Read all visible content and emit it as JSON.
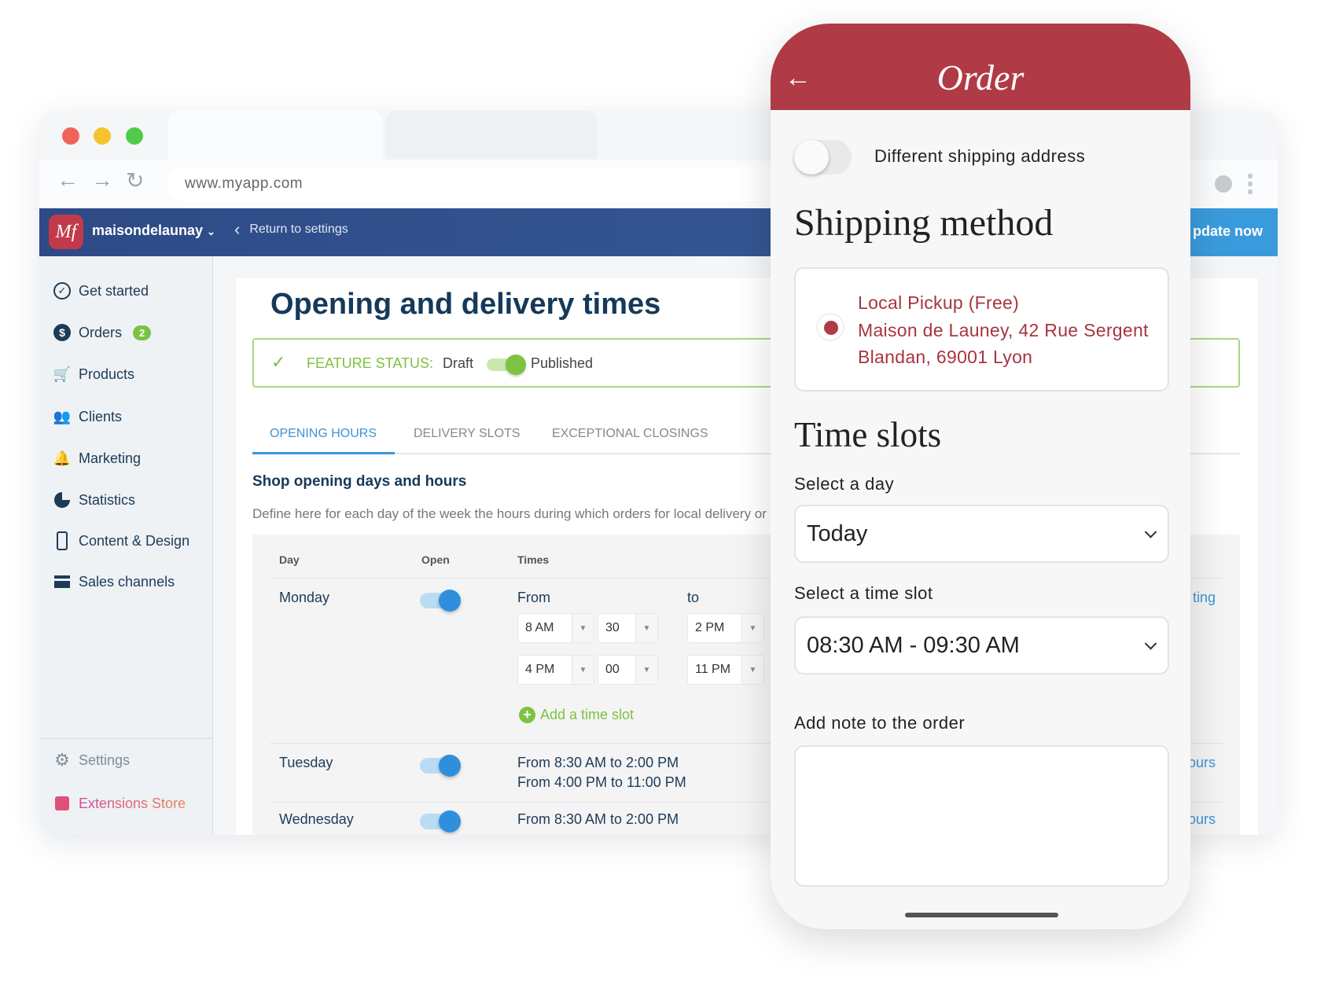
{
  "browser": {
    "url": "www.myapp.com",
    "traffic_lights": [
      "#f0625a",
      "#f6c22e",
      "#4fcb4b"
    ]
  },
  "topbar": {
    "logo_text": "Mf",
    "store_name": "maisondelaunay",
    "return_label": "Return to settings",
    "update_label": "pdate now"
  },
  "sidebar": {
    "items": [
      {
        "label": "Get started",
        "icon": "check-circle-icon"
      },
      {
        "label": "Orders",
        "icon": "dollar-icon",
        "badge": "2"
      },
      {
        "label": "Products",
        "icon": "cart-icon"
      },
      {
        "label": "Clients",
        "icon": "users-icon"
      },
      {
        "label": "Marketing",
        "icon": "bell-icon"
      },
      {
        "label": "Statistics",
        "icon": "pie-chart-icon"
      },
      {
        "label": "Content & Design",
        "icon": "phone-icon"
      },
      {
        "label": "Sales channels",
        "icon": "store-icon"
      }
    ],
    "settings": "Settings",
    "extensions": "Extensions Store"
  },
  "main": {
    "title": "Opening and delivery times",
    "feature_status": {
      "label": "FEATURE STATUS:",
      "off": "Draft",
      "on": "Published",
      "published": true
    },
    "tabs": [
      {
        "label": "OPENING HOURS",
        "active": true
      },
      {
        "label": "DELIVERY SLOTS"
      },
      {
        "label": "EXCEPTIONAL CLOSINGS"
      }
    ],
    "section_title": "Shop opening days and hours",
    "description": "Define here for each day of the week the hours during which orders for local delivery or i",
    "table": {
      "headers": [
        "Day",
        "Open",
        "Times"
      ],
      "monday": {
        "day": "Monday",
        "from": "From",
        "to": "to",
        "slots": [
          [
            "8 AM",
            "30",
            "2 PM"
          ],
          [
            "4 PM",
            "00",
            "11 PM"
          ]
        ],
        "add": "Add a time slot",
        "action": "ting"
      },
      "tuesday": {
        "day": "Tuesday",
        "lines": [
          "From 8:30 AM to 2:00 PM",
          "From 4:00 PM to 11:00 PM"
        ],
        "action": "ours"
      },
      "wednesday": {
        "day": "Wednesday",
        "lines": [
          "From 8:30 AM to 2:00 PM"
        ],
        "action": "ours"
      }
    }
  },
  "phone": {
    "title": "Order",
    "toggle_label": "Different shipping address",
    "shipping_heading": "Shipping method",
    "pickup": [
      "Local Pickup (Free)",
      "Maison de Launey, 42 Rue Sergent",
      "Blandan, 69001 Lyon"
    ],
    "timeslots_heading": "Time slots",
    "day_label": "Select a day",
    "day_value": "Today",
    "slot_label": "Select a time slot",
    "slot_value": "08:30 AM - 09:30 AM",
    "note_label": "Add note to the order",
    "accent": "#b03a45"
  }
}
